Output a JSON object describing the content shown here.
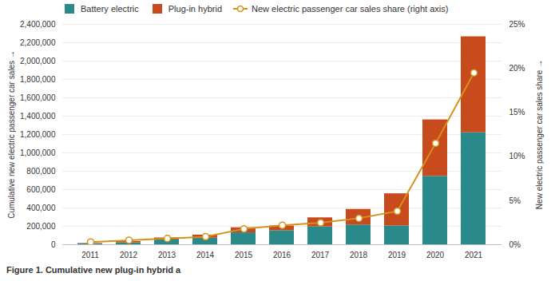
{
  "chart_data": {
    "type": "bar",
    "stacked": true,
    "caption": "Figure 1. Cumulative new plug-in hybrid a",
    "categories": [
      "2011",
      "2012",
      "2013",
      "2014",
      "2015",
      "2016",
      "2017",
      "2018",
      "2019",
      "2020",
      "2021"
    ],
    "series": [
      {
        "name": "Battery electric",
        "color": "#2A8A8A",
        "values": [
          10000,
          22000,
          52000,
          72000,
          130000,
          152000,
          195000,
          215000,
          205000,
          745000,
          1220000
        ]
      },
      {
        "name": "Plug-in hybrid",
        "color": "#C84B1E",
        "values": [
          4000,
          13000,
          22000,
          33000,
          55000,
          52000,
          98000,
          170000,
          350000,
          615000,
          1045000
        ]
      },
      {
        "name": "New electric passenger car sales share (right axis)",
        "type": "line",
        "axis": "y2",
        "color": "#D4921A",
        "marker": "circle",
        "values": [
          0.003,
          0.005,
          0.007,
          0.009,
          0.018,
          0.022,
          0.025,
          0.03,
          0.038,
          0.115,
          0.195
        ]
      }
    ],
    "ylabel": "Cumulative new electric passenger car sales",
    "y2label": "New electric passenger car sales share",
    "ylim": [
      0,
      2400000
    ],
    "yticks": [
      0,
      {
        "value": 200000,
        "label": "200,000"
      },
      {
        "value": 400000,
        "label": "400,000"
      },
      {
        "value": 600000,
        "label": "600,000"
      },
      {
        "value": 800000,
        "label": "800,000"
      },
      {
        "value": 1000000,
        "label": "1,000,000"
      },
      {
        "value": 1200000,
        "label": "1,200,000"
      },
      {
        "value": 1400000,
        "label": "1,400,000"
      },
      {
        "value": 1600000,
        "label": "1,600,000"
      },
      {
        "value": 1800000,
        "label": "1,800,000"
      },
      {
        "value": 2000000,
        "label": "2,000,000"
      },
      {
        "value": 2200000,
        "label": "2,200,000"
      },
      {
        "value": 2400000,
        "label": "2,400,000"
      }
    ],
    "y2lim": [
      0,
      0.25
    ],
    "y2ticks": [
      {
        "value": 0,
        "label": "0%"
      },
      {
        "value": 0.05,
        "label": "5%"
      },
      {
        "value": 0.1,
        "label": "10%"
      },
      {
        "value": 0.15,
        "label": "15%"
      },
      {
        "value": 0.2,
        "label": "20%"
      },
      {
        "value": 0.25,
        "label": "25%"
      }
    ],
    "grid": true,
    "legend": "upper left"
  }
}
